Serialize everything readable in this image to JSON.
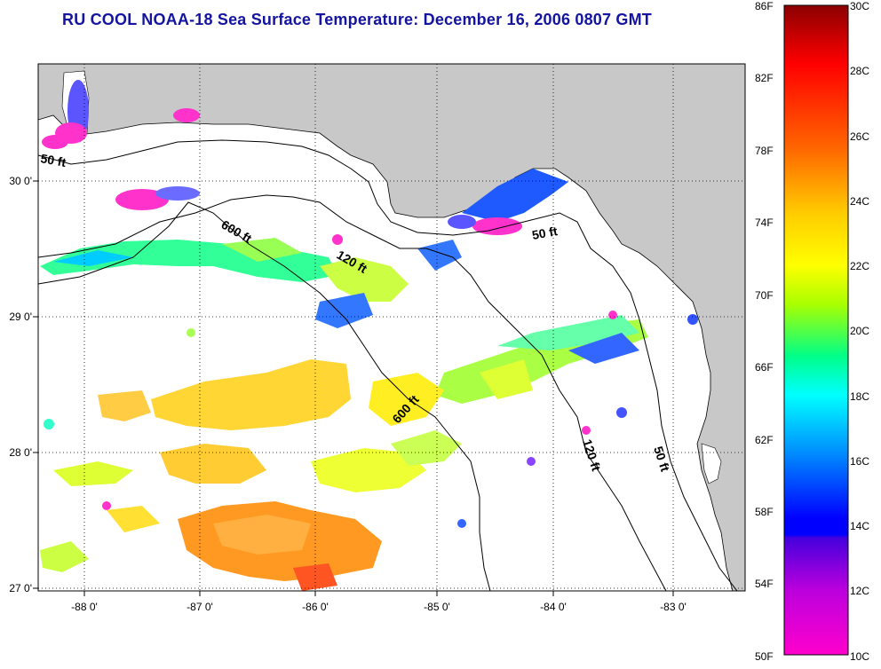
{
  "title": "RU COOL  NOAA-18  Sea Surface Temperature:  December 16, 2006 0807 GMT",
  "map": {
    "longitude_labels": [
      "-88 0'",
      "-87 0'",
      "-86 0'",
      "-85 0'",
      "-84 0'",
      "-83 0'"
    ],
    "latitude_labels": [
      "30 0'",
      "29 0'",
      "28 0'",
      "27 0'"
    ],
    "depth_contour_labels": [
      "50 ft",
      "600 ft",
      "120 ft",
      "50 ft",
      "600 ft",
      "120 ft",
      "50 ft"
    ],
    "colors": {
      "land": "#c8c8c8",
      "ocean_nodata": "#ffffff",
      "grid": "#000000",
      "title": "#1414a0"
    }
  },
  "colorbar": {
    "fahrenheit_labels": [
      "86F",
      "82F",
      "78F",
      "74F",
      "70F",
      "66F",
      "62F",
      "58F",
      "54F",
      "50F"
    ],
    "celsius_labels": [
      "30C",
      "28C",
      "26C",
      "24C",
      "22C",
      "20C",
      "18C",
      "16C",
      "14C",
      "12C",
      "10C"
    ],
    "colors_top_to_bottom": [
      "#8b0000",
      "#ff0000",
      "#ff6600",
      "#ffcc00",
      "#ffff00",
      "#aaff00",
      "#00ff88",
      "#00ffff",
      "#0088ff",
      "#0000ff",
      "#8800cc",
      "#ff00cc"
    ]
  }
}
